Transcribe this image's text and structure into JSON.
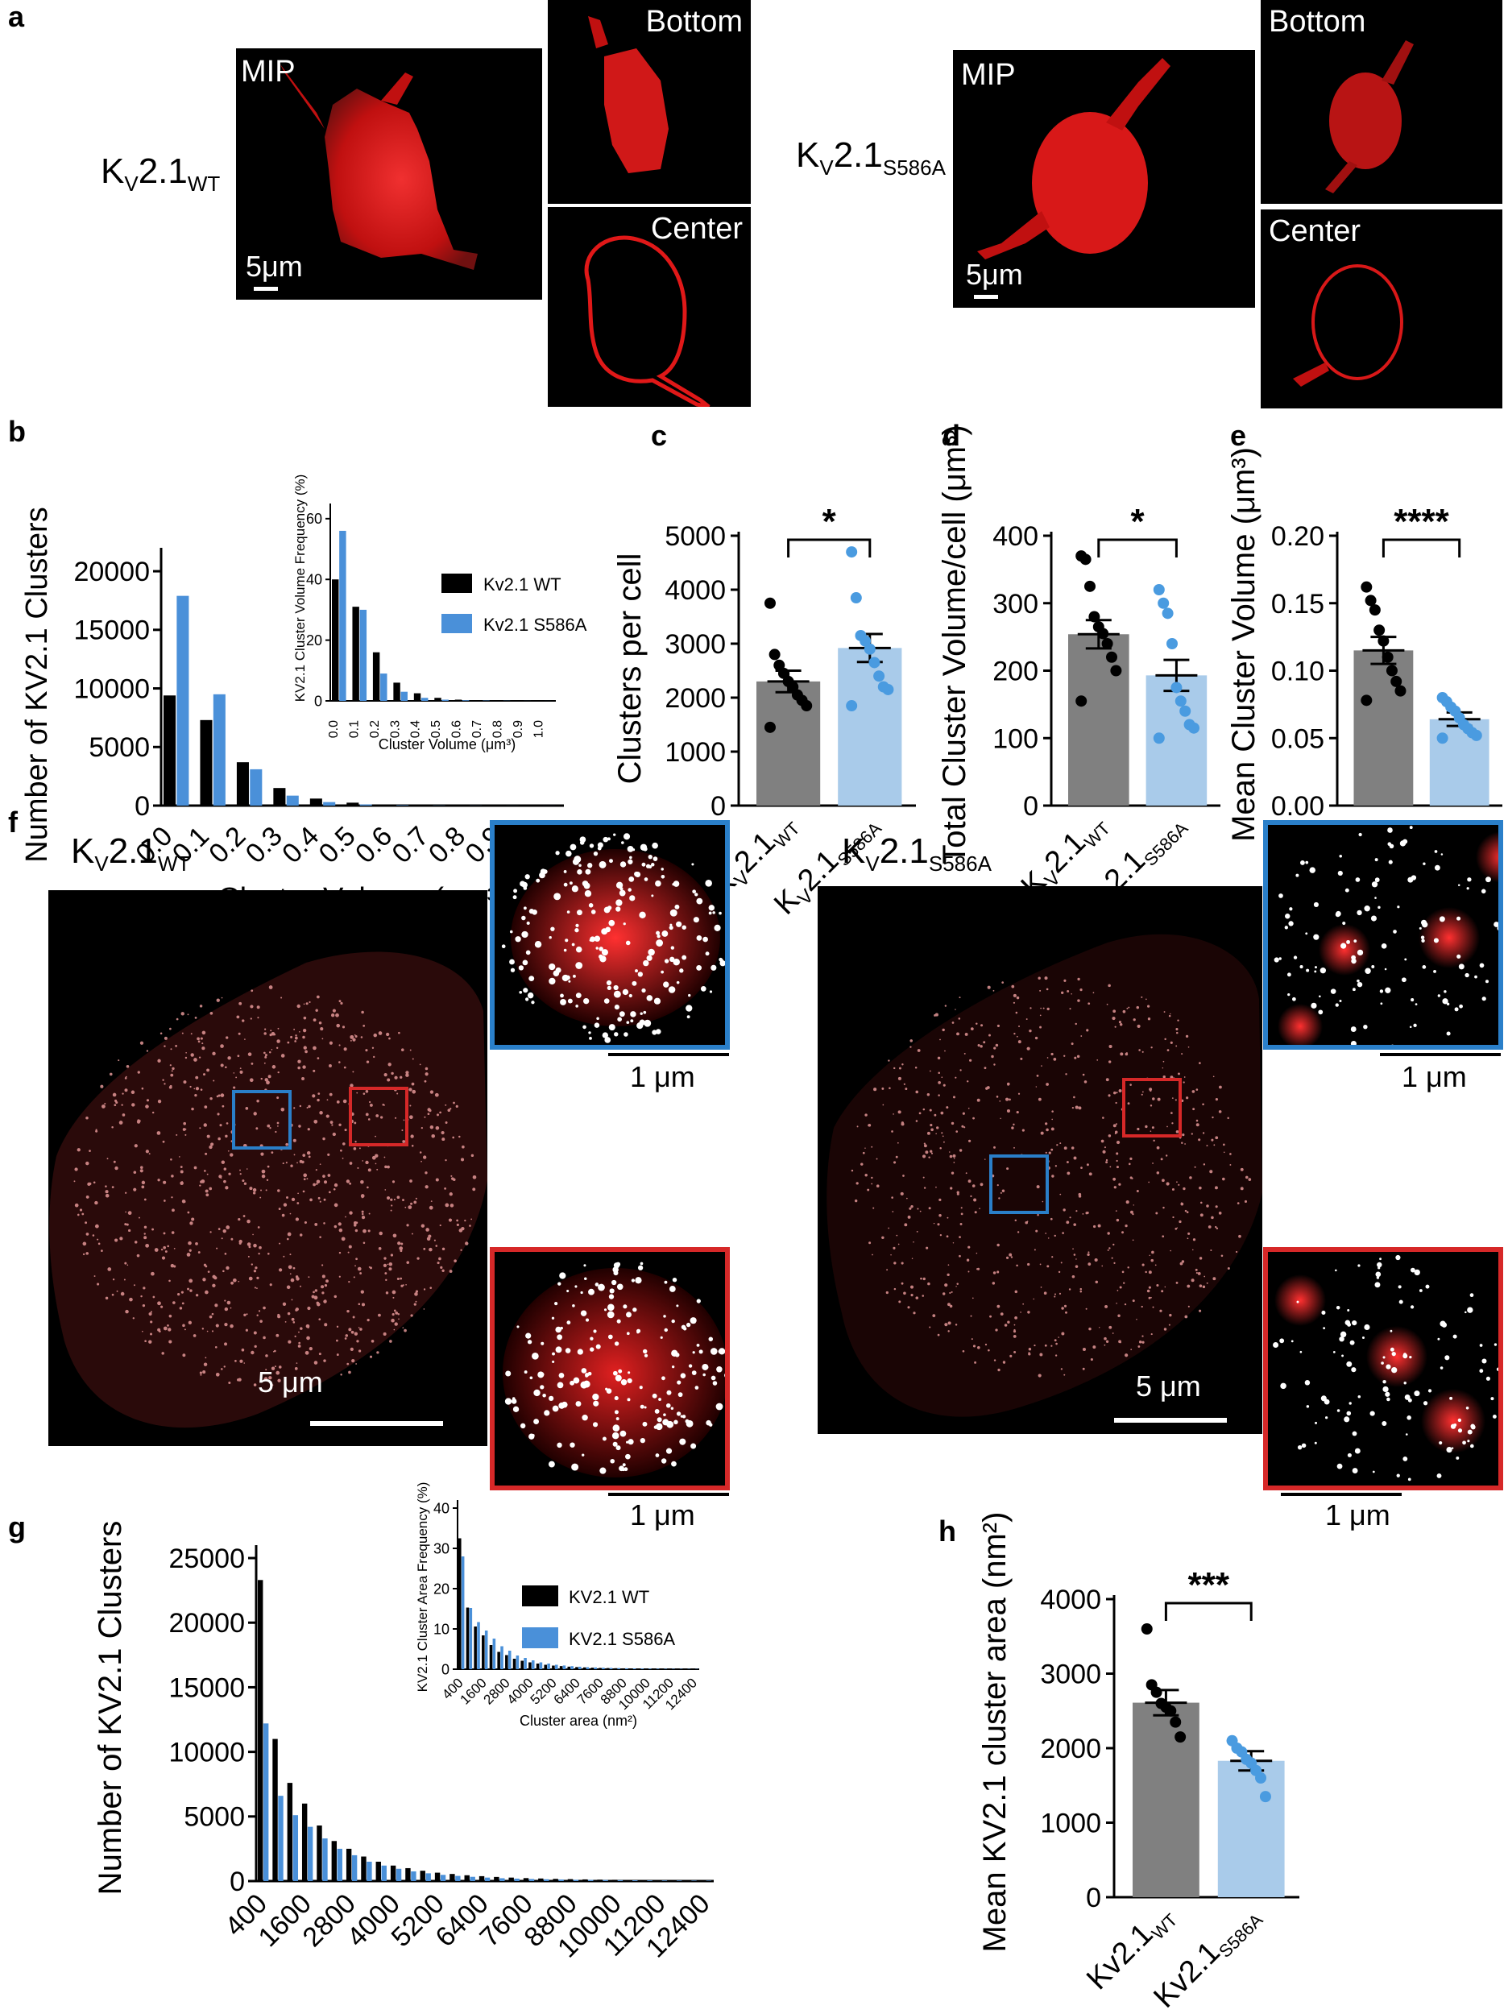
{
  "panels": {
    "a": "a",
    "b": "b",
    "c": "c",
    "d": "d",
    "e": "e",
    "f": "f",
    "g": "g",
    "h": "h"
  },
  "panel_a": {
    "wt": {
      "label_main": "K",
      "label_sub1": "V",
      "label_mid": "2.1",
      "label_sub2": "WT",
      "mip": "MIP",
      "bottom": "Bottom",
      "center": "Center",
      "scale": "5μm"
    },
    "mut": {
      "label_main": "K",
      "label_sub1": "V",
      "label_mid": "2.1",
      "label_sub2": "S586A",
      "mip": "MIP",
      "bottom": "Bottom",
      "center": "Center",
      "scale": "5μm"
    }
  },
  "panel_f": {
    "wt": {
      "label_main": "K",
      "label_sub1": "V",
      "label_mid": "2.1",
      "label_sub2": "WT",
      "scale": "5 μm",
      "inset_scale_1": "1 μm",
      "inset_scale_2": "1 μm"
    },
    "mut": {
      "label_main": "K",
      "label_sub1": "V",
      "label_mid": "2.1",
      "label_sub2": "S586A",
      "scale": "5 μm",
      "inset_scale_1": "1 μm",
      "inset_scale_2": "1 μm"
    }
  },
  "colors": {
    "wt": "#000000",
    "mut": "#4a90d9",
    "wt_bar": "#808080",
    "mut_bar": "#a9cbea",
    "dot_mut": "#4a9be0",
    "micro_red": "#e01818",
    "inset_blue": "#2a7fc9",
    "inset_red": "#d62828"
  },
  "chart_data": [
    {
      "id": "b",
      "type": "bar",
      "ylabel": "Number of KV2.1 Clusters",
      "xlabel": "Cluster Volume (μm³)",
      "categories": [
        "0.0",
        "0.1",
        "0.2",
        "0.3",
        "0.4",
        "0.5",
        "0.6",
        "0.7",
        "0.8",
        "0.9",
        "1.0"
      ],
      "yticks": [
        "0",
        "5000",
        "10000",
        "15000",
        "20000"
      ],
      "ylim": [
        0,
        22000
      ],
      "series": [
        {
          "name": "Kv2.1 WT",
          "values": [
            9400,
            7300,
            3700,
            1500,
            600,
            250,
            80,
            30,
            15,
            8,
            5
          ]
        },
        {
          "name": "Kv2.1 S586A",
          "values": [
            17900,
            9500,
            3100,
            850,
            300,
            100,
            40,
            15,
            8,
            4,
            2
          ]
        }
      ],
      "legend": [
        "Kv2.1",
        "WT",
        "Kv2.1",
        "S586A"
      ],
      "inset": {
        "ylabel": "KV2.1 Cluster Volume Frequency (%)",
        "xlabel": "Cluster Volume (μm³)",
        "yticks": [
          "0",
          "20",
          "40",
          "60"
        ],
        "ylim": [
          0,
          65
        ],
        "categories": [
          "0.0",
          "0.1",
          "0.2",
          "0.3",
          "0.4",
          "0.5",
          "0.6",
          "0.7",
          "0.8",
          "0.9",
          "1.0"
        ],
        "series": [
          {
            "values": [
              40,
              31,
              16,
              6,
              2.5,
              1,
              0.4,
              0.2,
              0.1,
              0.05,
              0.02
            ]
          },
          {
            "values": [
              56,
              30,
              9,
              3,
              1,
              0.4,
              0.2,
              0.1,
              0.05,
              0.02,
              0.01
            ]
          }
        ]
      }
    },
    {
      "id": "c",
      "type": "bar",
      "ylabel": "Clusters per cell",
      "yticks": [
        "0",
        "1000",
        "2000",
        "3000",
        "4000",
        "5000"
      ],
      "ylim": [
        0,
        5000
      ],
      "groups": [
        {
          "label_main": "K",
          "label_sub1": "V",
          "label_mid": "2.1",
          "label_sub2": "WT",
          "mean": 2300,
          "sem": 200,
          "points": [
            3750,
            2800,
            2600,
            2450,
            2300,
            2200,
            2050,
            1950,
            1850,
            1450
          ]
        },
        {
          "label_main": "K",
          "label_sub1": "V",
          "label_mid": "2.1",
          "label_sub2": "S586A",
          "mean": 2920,
          "sem": 260,
          "points": [
            4700,
            3850,
            3150,
            3050,
            2900,
            2650,
            2400,
            2200,
            2150,
            1850
          ]
        }
      ],
      "significance": "*"
    },
    {
      "id": "d",
      "type": "bar",
      "ylabel": "Total Cluster Volume/cell (μm³)",
      "yticks": [
        "0",
        "100",
        "200",
        "300",
        "400"
      ],
      "ylim": [
        0,
        400
      ],
      "groups": [
        {
          "label_main": "K",
          "label_sub1": "V",
          "label_mid": "2.1",
          "label_sub2": "WT",
          "mean": 254,
          "sem": 21,
          "points": [
            370,
            365,
            325,
            280,
            265,
            255,
            240,
            220,
            200,
            155
          ]
        },
        {
          "label_main": "K",
          "label_sub1": "V",
          "label_mid": "2.1",
          "label_sub2": "S586A",
          "mean": 193,
          "sem": 23,
          "points": [
            320,
            300,
            285,
            240,
            175,
            155,
            140,
            120,
            115,
            100
          ]
        }
      ],
      "significance": "*"
    },
    {
      "id": "e",
      "type": "bar",
      "ylabel": "Mean Cluster Volume (μm³)",
      "yticks": [
        "0.00",
        "0.05",
        "0.10",
        "0.15",
        "0.20"
      ],
      "ylim": [
        0,
        0.2
      ],
      "groups": [
        {
          "label_main": "K",
          "label_sub1": "V",
          "label_mid": "2.1",
          "label_sub2": "WT",
          "mean": 0.115,
          "sem": 0.01,
          "points": [
            0.162,
            0.152,
            0.145,
            0.13,
            0.122,
            0.11,
            0.1,
            0.092,
            0.085,
            0.078
          ]
        },
        {
          "label_main": "K",
          "label_sub1": "V",
          "label_mid": "2.1",
          "label_sub2": "S586A",
          "mean": 0.064,
          "sem": 0.005,
          "points": [
            0.08,
            0.077,
            0.073,
            0.07,
            0.065,
            0.06,
            0.057,
            0.054,
            0.052,
            0.05
          ]
        }
      ],
      "significance": "****"
    },
    {
      "id": "g",
      "type": "bar",
      "ylabel": "Number of KV2.1 Clusters",
      "xlabel": "",
      "categories": [
        "400",
        "800",
        "1200",
        "1600",
        "2000",
        "2400",
        "2800",
        "3200",
        "3600",
        "4000",
        "4400",
        "4800",
        "5200",
        "5600",
        "6000",
        "6400",
        "6800",
        "7200",
        "7600",
        "8000",
        "8400",
        "8800",
        "9200",
        "9600",
        "10000",
        "10400",
        "10800",
        "11200",
        "11600",
        "12000",
        "12400"
      ],
      "xticklabels": [
        "400",
        "1600",
        "2800",
        "4000",
        "5200",
        "6400",
        "7600",
        "8800",
        "10000",
        "11200",
        "12400"
      ],
      "yticks": [
        "0",
        "5000",
        "10000",
        "15000",
        "20000",
        "25000"
      ],
      "ylim": [
        0,
        26000
      ],
      "series": [
        {
          "name": "KV2.1 WT",
          "values": [
            23300,
            11000,
            7600,
            6000,
            4300,
            3100,
            2500,
            1900,
            1500,
            1200,
            1000,
            800,
            650,
            550,
            450,
            380,
            320,
            270,
            230,
            200,
            170,
            150,
            130,
            110,
            100,
            90,
            80,
            70,
            60,
            50,
            45
          ]
        },
        {
          "name": "KV2.1 S586A",
          "values": [
            12200,
            6600,
            5100,
            4200,
            3300,
            2500,
            2000,
            1500,
            1200,
            950,
            750,
            600,
            480,
            400,
            330,
            270,
            220,
            190,
            160,
            140,
            120,
            100,
            90,
            80,
            70,
            60,
            50,
            45,
            40,
            35,
            30
          ]
        }
      ],
      "legend": [
        "K",
        "V",
        "2.1",
        "WT",
        "K",
        "V",
        "2.1",
        "S586A"
      ],
      "inset": {
        "ylabel": "KV2.1 Cluster Area Frequency (%)",
        "xlabel": "Cluster area (nm²)",
        "yticks": [
          "0",
          "10",
          "20",
          "30",
          "40"
        ],
        "ylim": [
          0,
          42
        ],
        "xticklabels": [
          "400",
          "1600",
          "2800",
          "4000",
          "5200",
          "6400",
          "7600",
          "8800",
          "10000",
          "11200",
          "12400"
        ],
        "series": [
          {
            "values": [
              32.5,
              15.3,
              10.6,
              8.4,
              6.0,
              4.3,
              3.5,
              2.6,
              2.1,
              1.7,
              1.4,
              1.1,
              0.9,
              0.77,
              0.63,
              0.53,
              0.45,
              0.38,
              0.32,
              0.28,
              0.24,
              0.21,
              0.18,
              0.15,
              0.14,
              0.13,
              0.11,
              0.1,
              0.08,
              0.07,
              0.06
            ]
          },
          {
            "values": [
              28,
              15.2,
              11.7,
              9.6,
              7.6,
              5.7,
              4.6,
              3.4,
              2.8,
              2.2,
              1.7,
              1.4,
              1.1,
              0.92,
              0.76,
              0.62,
              0.5,
              0.44,
              0.37,
              0.32,
              0.28,
              0.23,
              0.21,
              0.18,
              0.16,
              0.14,
              0.11,
              0.1,
              0.09,
              0.08,
              0.07
            ]
          }
        ]
      }
    },
    {
      "id": "h",
      "type": "bar",
      "ylabel": "Mean KV2.1 cluster area (nm²)",
      "yticks": [
        "0",
        "1000",
        "2000",
        "3000",
        "4000"
      ],
      "ylim": [
        0,
        4000
      ],
      "groups": [
        {
          "label_main": "Kv2.1",
          "label_sub1": "",
          "label_mid": "",
          "label_sub2": "WT",
          "mean": 2610,
          "sem": 170,
          "points": [
            3600,
            2850,
            2750,
            2600,
            2550,
            2500,
            2350,
            2150
          ]
        },
        {
          "label_main": "Kv2.1",
          "label_sub1": "",
          "label_mid": "",
          "label_sub2": "S586A",
          "mean": 1830,
          "sem": 130,
          "points": [
            2100,
            2000,
            1950,
            1850,
            1800,
            1700,
            1600,
            1350
          ]
        }
      ],
      "significance": "***"
    }
  ]
}
